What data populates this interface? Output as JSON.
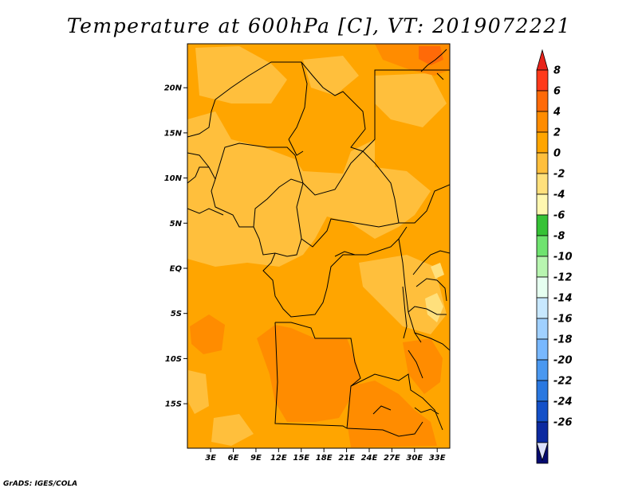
{
  "title": "Temperature at 600hPa [C], VT: 2019072221",
  "credit": "GrADS: IGES/COLA",
  "lat_labels": [
    "20N",
    "15N",
    "10N",
    "5N",
    "EQ",
    "5S",
    "10S",
    "15S"
  ],
  "lat_values": [
    20,
    15,
    10,
    5,
    0,
    -5,
    -10,
    -15
  ],
  "lon_labels": [
    "3E",
    "6E",
    "9E",
    "12E",
    "15E",
    "18E",
    "21E",
    "24E",
    "27E",
    "30E",
    "33E"
  ],
  "lon_values": [
    3,
    6,
    9,
    12,
    15,
    18,
    21,
    24,
    27,
    30,
    33
  ],
  "colorbar": {
    "labels": [
      "8",
      "6",
      "4",
      "2",
      "0",
      "-2",
      "-4",
      "-6",
      "-8",
      "-10",
      "-12",
      "-14",
      "-16",
      "-18",
      "-20",
      "-22",
      "-24",
      "-26"
    ],
    "colors": [
      "#ff3a1a",
      "#ff6a08",
      "#ff8c00",
      "#ffa500",
      "#ffbf3c",
      "#ffe07c",
      "#fff7b0",
      "#36c236",
      "#6fe36f",
      "#b8f5b0",
      "#e6fff0",
      "#c8e8ff",
      "#a0d0ff",
      "#78b8ff",
      "#4a98f0",
      "#2a78e0",
      "#1450c8",
      "#0c2aa0",
      "#050a70"
    ],
    "top_color": "#e8231a",
    "bottom_color": "#dce0fa"
  }
}
